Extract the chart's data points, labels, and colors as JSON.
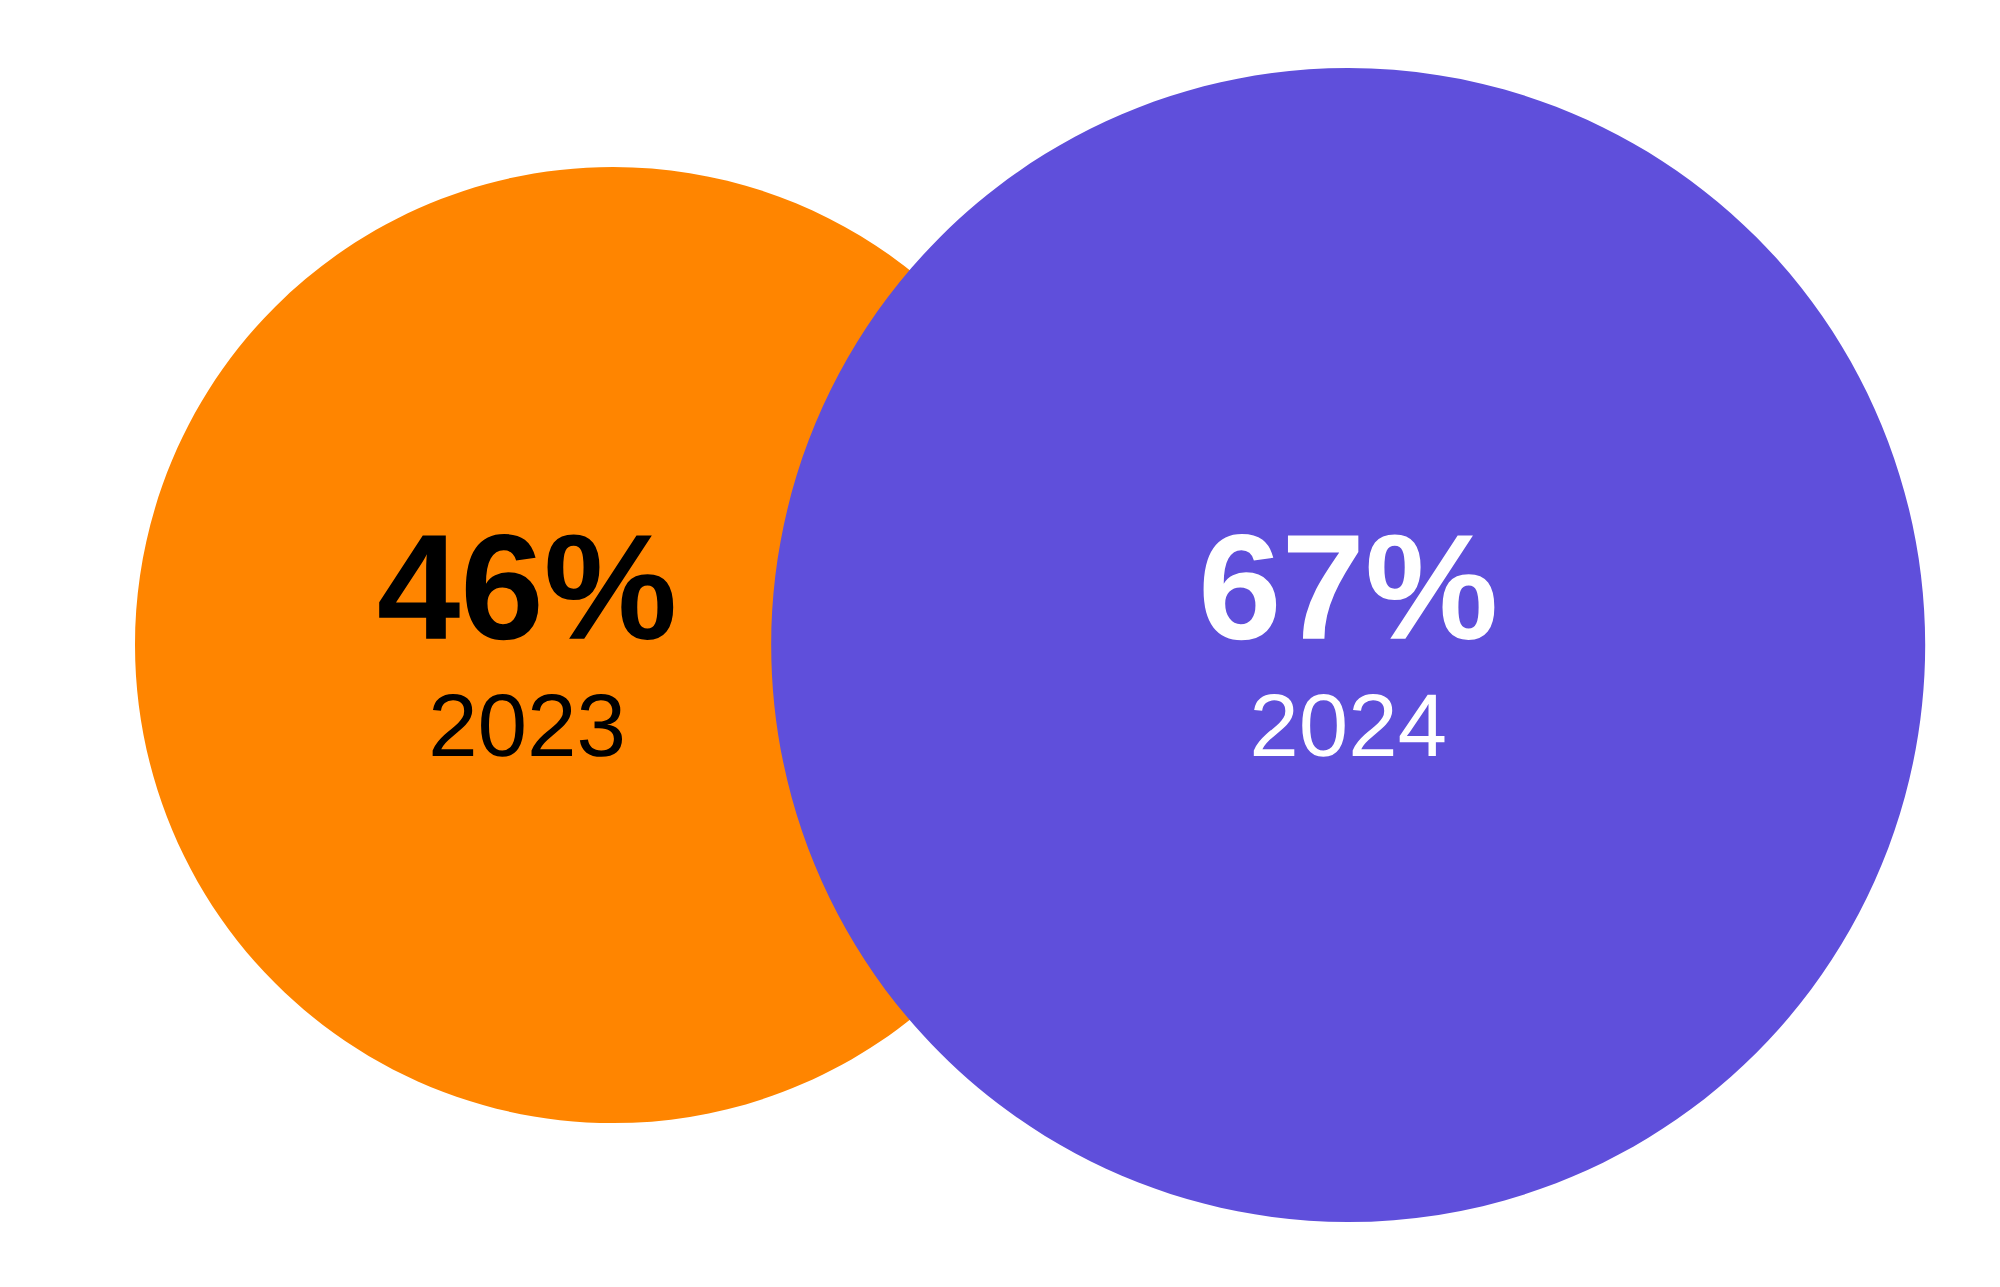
{
  "chart_data": {
    "type": "other",
    "categories": [
      "2023",
      "2024"
    ],
    "values": [
      46,
      67
    ],
    "value_labels": [
      "46%",
      "67%"
    ],
    "colors": [
      "#ff8500",
      "#5f4fdb"
    ]
  }
}
